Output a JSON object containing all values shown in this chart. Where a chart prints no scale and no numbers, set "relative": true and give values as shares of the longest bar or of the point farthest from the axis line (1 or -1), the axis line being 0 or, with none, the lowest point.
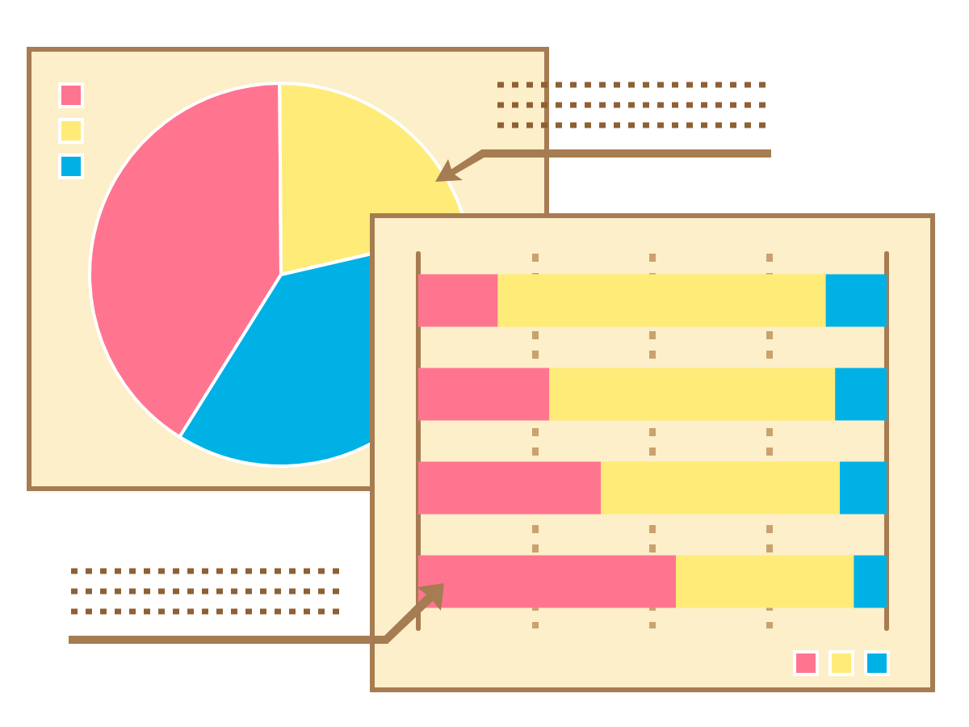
{
  "chart_data": [
    {
      "type": "pie",
      "categories": [
        null,
        null,
        null
      ],
      "values": [
        41,
        21.5,
        37.5
      ],
      "colors": [
        "#ff758f",
        "#ffeb78",
        "#00b1e6"
      ]
    },
    {
      "type": "bar",
      "orientation": "horizontal",
      "stacked": true,
      "relative": true,
      "categories": [
        null,
        null,
        null,
        null
      ],
      "ref_lines": [
        {
          "axis": "x",
          "value": 0.25,
          "color": "#c9a26e",
          "line_style": "dashed"
        },
        {
          "axis": "x",
          "value": 0.5,
          "color": "#c9a26e",
          "line_style": "dashed"
        },
        {
          "axis": "x",
          "value": 0.75,
          "color": "#c9a26e",
          "line_style": "dashed"
        }
      ],
      "series": [
        {
          "color": "#ff758f",
          "values": [
            0.17,
            0.28,
            0.39,
            0.55
          ]
        },
        {
          "color": "#ffeb78",
          "values": [
            0.7,
            0.61,
            0.51,
            0.38
          ]
        },
        {
          "color": "#00b1e6",
          "values": [
            0.13,
            0.11,
            0.1,
            0.07
          ]
        }
      ]
    }
  ]
}
